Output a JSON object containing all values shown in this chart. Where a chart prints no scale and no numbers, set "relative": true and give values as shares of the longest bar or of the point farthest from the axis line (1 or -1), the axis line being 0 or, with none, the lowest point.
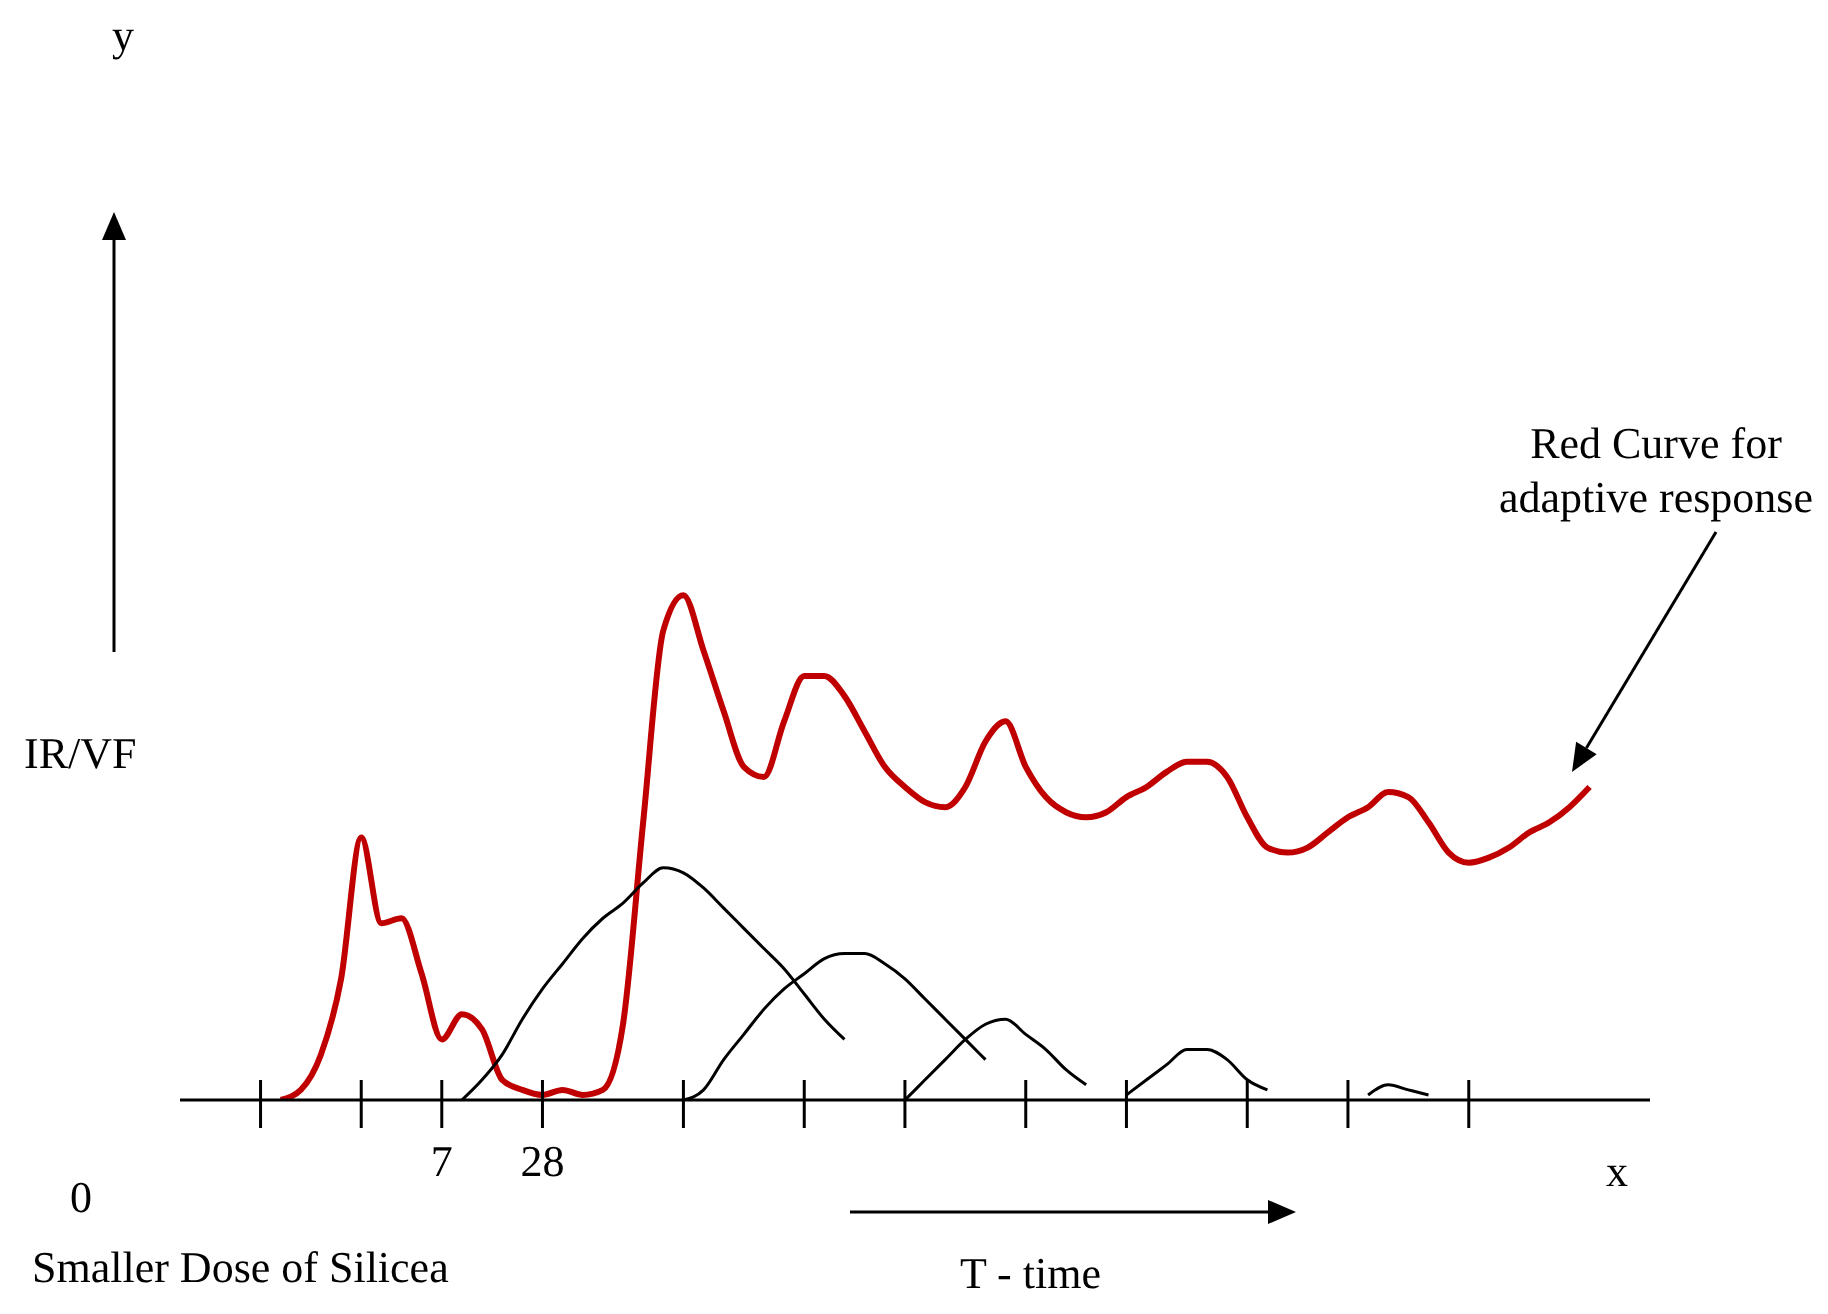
{
  "chart_data": {
    "type": "line",
    "relative": true,
    "xlabel": "x",
    "categories": [
      null,
      null,
      null,
      null,
      null,
      null,
      null,
      null,
      null,
      null,
      null,
      null,
      null,
      "7",
      null,
      null,
      null,
      null,
      "28",
      null,
      null,
      null,
      null,
      null,
      null,
      null,
      null,
      null,
      null,
      null,
      null,
      null,
      null,
      null,
      null,
      null,
      null,
      null,
      null,
      null,
      null,
      null,
      null,
      null,
      null,
      null,
      null,
      null,
      null,
      null,
      null,
      null,
      null,
      null,
      null,
      null,
      null,
      null,
      null,
      null,
      null,
      null,
      null,
      null,
      null,
      null,
      null,
      null,
      null,
      null,
      null,
      null,
      null,
      null
    ],
    "annotations": [
      "0",
      "Smaller Dose of Silicea",
      "IR/VF",
      "T - time",
      "Red Curve for adaptive response",
      "y"
    ],
    "marker": "none",
    "line_style": "solid",
    "series": [
      {
        "color": "#c00000",
        "values": [
          null,
          null,
          null,
          null,
          null,
          0,
          0.02,
          0.09,
          0.24,
          0.52,
          0.35,
          0.36,
          0.25,
          0.12,
          0.17,
          0.14,
          0.04,
          0.02,
          0.01,
          0.02,
          0.01,
          0.02,
          0.15,
          0.55,
          0.93,
          1,
          0.89,
          0.77,
          0.66,
          0.64,
          0.75,
          0.84,
          0.84,
          0.8,
          0.73,
          0.66,
          0.62,
          0.59,
          0.58,
          0.62,
          0.71,
          0.75,
          0.66,
          0.6,
          0.57,
          0.56,
          0.57,
          0.6,
          0.62,
          0.65,
          0.67,
          0.67,
          0.64,
          0.56,
          0.5,
          0.49,
          0.5,
          0.53,
          0.56,
          0.58,
          0.61,
          0.6,
          0.55,
          0.49,
          0.47,
          0.48,
          0.5,
          0.53,
          0.55,
          0.58,
          0.62,
          null,
          null,
          null
        ]
      },
      {
        "color": "#000000",
        "values": [
          null,
          null,
          null,
          null,
          null,
          null,
          null,
          null,
          null,
          null,
          null,
          null,
          null,
          null,
          0,
          0.04,
          0.09,
          0.16,
          0.22,
          0.27,
          0.32,
          0.36,
          0.39,
          0.43,
          0.46,
          0.45,
          0.42,
          0.38,
          0.34,
          0.3,
          0.26,
          0.21,
          0.16,
          0.12,
          null,
          null,
          null,
          null,
          null,
          null,
          null,
          null,
          null,
          null,
          null,
          null,
          null,
          null,
          null,
          null,
          null,
          null,
          null,
          null,
          null,
          null,
          null,
          null,
          null,
          null,
          null,
          null,
          null,
          null,
          null,
          null,
          null,
          null,
          null,
          null,
          null,
          null,
          null,
          null
        ]
      },
      {
        "color": "#000000",
        "values": [
          null,
          null,
          null,
          null,
          null,
          null,
          null,
          null,
          null,
          null,
          null,
          null,
          null,
          null,
          null,
          null,
          null,
          null,
          null,
          null,
          null,
          null,
          null,
          null,
          null,
          0,
          0.02,
          0.08,
          0.13,
          0.18,
          0.22,
          0.25,
          0.28,
          0.29,
          0.29,
          0.27,
          0.24,
          0.2,
          0.16,
          0.12,
          0.08,
          null,
          null,
          null,
          null,
          null,
          null,
          null,
          null,
          null,
          null,
          null,
          null,
          null,
          null,
          null,
          null,
          null,
          null,
          null,
          null,
          null,
          null,
          null,
          null,
          null,
          null,
          null,
          null,
          null,
          null,
          null,
          null,
          null
        ]
      },
      {
        "color": "#000000",
        "values": [
          null,
          null,
          null,
          null,
          null,
          null,
          null,
          null,
          null,
          null,
          null,
          null,
          null,
          null,
          null,
          null,
          null,
          null,
          null,
          null,
          null,
          null,
          null,
          null,
          null,
          null,
          null,
          null,
          null,
          null,
          null,
          null,
          null,
          null,
          null,
          null,
          0,
          0.04,
          0.08,
          0.12,
          0.15,
          0.16,
          0.13,
          0.1,
          0.06,
          0.03,
          null,
          null,
          null,
          null,
          null,
          null,
          null,
          null,
          null,
          null,
          null,
          null,
          null,
          null,
          null,
          null,
          null,
          null,
          null,
          null,
          null,
          null,
          null,
          null,
          null,
          null,
          null,
          null
        ]
      },
      {
        "color": "#000000",
        "values": [
          null,
          null,
          null,
          null,
          null,
          null,
          null,
          null,
          null,
          null,
          null,
          null,
          null,
          null,
          null,
          null,
          null,
          null,
          null,
          null,
          null,
          null,
          null,
          null,
          null,
          null,
          null,
          null,
          null,
          null,
          null,
          null,
          null,
          null,
          null,
          null,
          null,
          null,
          null,
          null,
          null,
          null,
          null,
          null,
          null,
          null,
          null,
          0.01,
          0.04,
          0.07,
          0.1,
          0.1,
          0.08,
          0.04,
          0.02,
          null,
          null,
          null,
          null,
          null,
          null,
          null,
          null,
          null,
          null,
          null,
          null,
          null,
          null,
          null,
          null,
          null,
          null,
          null
        ]
      },
      {
        "color": "#000000",
        "values": [
          null,
          null,
          null,
          null,
          null,
          null,
          null,
          null,
          null,
          null,
          null,
          null,
          null,
          null,
          null,
          null,
          null,
          null,
          null,
          null,
          null,
          null,
          null,
          null,
          null,
          null,
          null,
          null,
          null,
          null,
          null,
          null,
          null,
          null,
          null,
          null,
          null,
          null,
          null,
          null,
          null,
          null,
          null,
          null,
          null,
          null,
          null,
          null,
          null,
          null,
          null,
          null,
          null,
          null,
          null,
          null,
          null,
          null,
          null,
          0.01,
          0.03,
          0.02,
          0.01,
          null,
          null,
          null,
          null,
          null,
          null,
          null,
          null,
          null,
          null,
          null
        ]
      }
    ]
  }
}
